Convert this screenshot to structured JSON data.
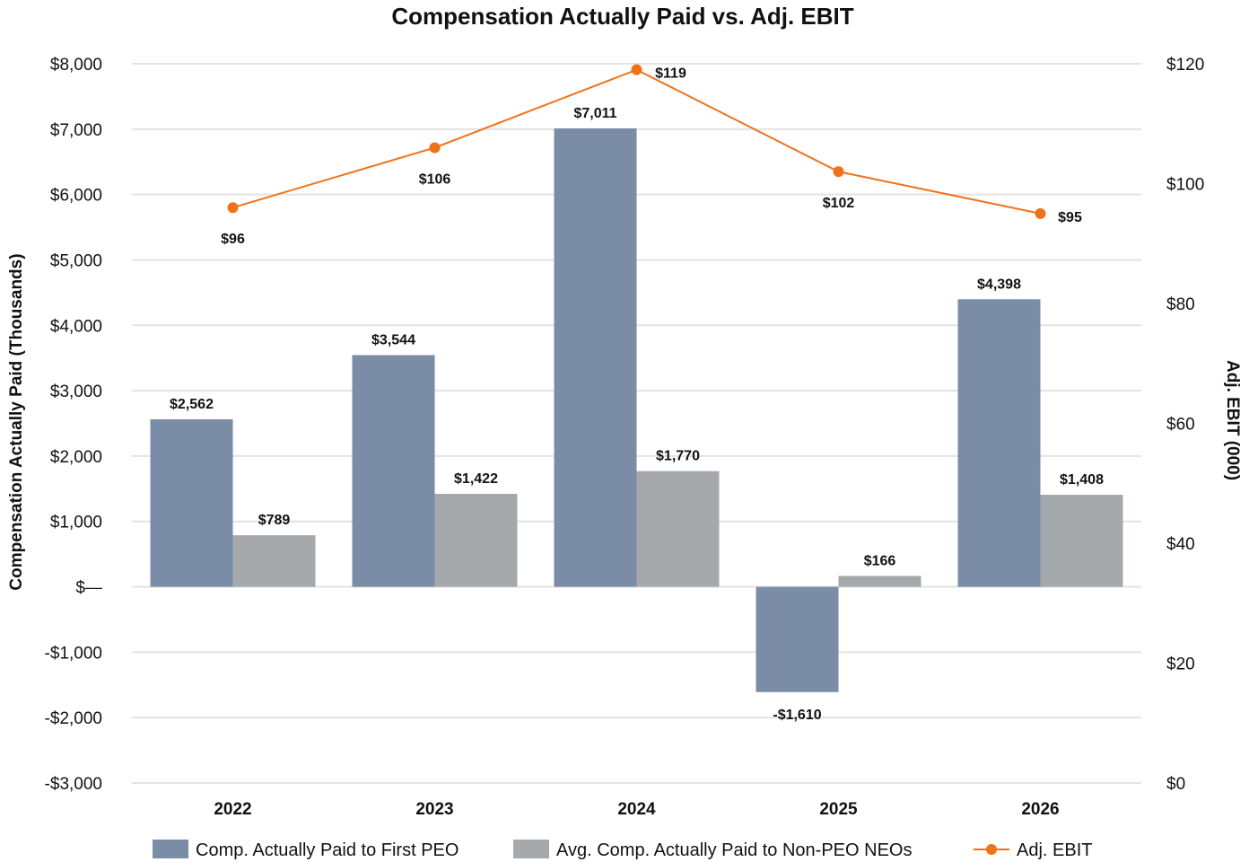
{
  "chart_data": {
    "type": "bar",
    "title": "Compensation Actually Paid vs. Adj. EBIT",
    "categories": [
      "2022",
      "2023",
      "2024",
      "2025",
      "2026"
    ],
    "y_left": {
      "label": "Compensation Actually Paid (Thousands)",
      "range": [
        -3000,
        8000
      ],
      "ticks": [
        8000,
        7000,
        6000,
        5000,
        4000,
        3000,
        2000,
        1000,
        0,
        -1000,
        -2000,
        -3000
      ],
      "tick_labels": [
        "$8,000",
        "$7,000",
        "$6,000",
        "$5,000",
        "$4,000",
        "$3,000",
        "$2,000",
        "$1,000",
        "$—",
        "-$1,000",
        "-$2,000",
        "-$3,000"
      ]
    },
    "y_right": {
      "label": "Adj. EBIT (000)",
      "range": [
        0,
        120
      ],
      "ticks": [
        120,
        100,
        80,
        60,
        40,
        20,
        0
      ],
      "tick_labels": [
        "$120",
        "$100",
        "$80",
        "$60",
        "$40",
        "$20",
        "$0"
      ]
    },
    "series": [
      {
        "name": "Comp. Actually Paid to First PEO",
        "type": "bar",
        "axis": "left",
        "color": "#7a8ca6",
        "values": [
          2562,
          3544,
          7011,
          -1610,
          4398
        ],
        "labels": [
          "$2,562",
          "$3,544",
          "$7,011",
          "-$1,610",
          "$4,398"
        ]
      },
      {
        "name": "Avg. Comp. Actually Paid to Non-PEO NEOs",
        "type": "bar",
        "axis": "left",
        "color": "#a5a9ac",
        "values": [
          789,
          1422,
          1770,
          166,
          1408
        ],
        "labels": [
          "$789",
          "$1,422",
          "$1,770",
          "$166",
          "$1,408"
        ]
      },
      {
        "name": "Adj. EBIT",
        "type": "line",
        "axis": "right",
        "color": "#f07218",
        "values": [
          96,
          106,
          119,
          102,
          95
        ],
        "labels": [
          "$96",
          "$106",
          "$119",
          "$102",
          "$95"
        ]
      }
    ],
    "grid": true,
    "legend_position": "bottom"
  }
}
